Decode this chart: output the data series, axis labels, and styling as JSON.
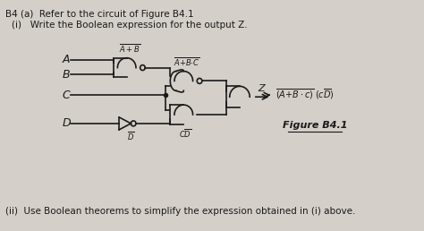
{
  "title_line1": "B4 (a)  Refer to the circuit of Figure B4.1",
  "question_i": "(i)   Write the Boolean expression for the output Z.",
  "question_ii": "(ii)  Use Boolean theorems to simplify the expression obtained in (i) above.",
  "figure_label": "Figure B4.1",
  "bg_color": "#d4cfc9",
  "text_color": "#1a1a1a",
  "input_labels": [
    "A",
    "B",
    "C",
    "D"
  ]
}
